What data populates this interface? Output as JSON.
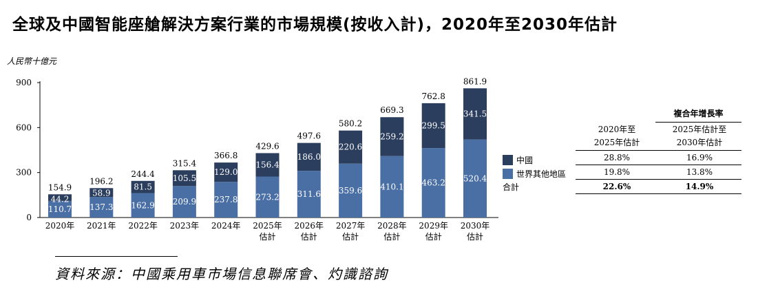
{
  "title": "全球及中國智能座艙解決方案行業的市場規模(按收入計)，2020年至2030年估計",
  "unit_label": "人民幣十億元",
  "source": "資料來源：中國乘用車市場信息聯席會、灼識諮詢",
  "legend": {
    "series1": "中國",
    "series2": "世界其他地區",
    "total": "合計"
  },
  "colors": {
    "china": "#2c3e5e",
    "rest_of_world": "#4a6fa5",
    "axis": "#000000"
  },
  "cagr_table": {
    "title": "複合年增長率",
    "col1_header_line1": "2020年至",
    "col1_header_line2": "2025年估計",
    "col2_header_line1": "2025年估計至",
    "col2_header_line2": "2030年估計",
    "china": [
      "28.8%",
      "16.9%"
    ],
    "rest_of_world": [
      "19.8%",
      "13.8%"
    ],
    "total": [
      "22.6%",
      "14.9%"
    ]
  },
  "chart_data": {
    "type": "bar",
    "stacked": true,
    "categories": [
      "2020年",
      "2021年",
      "2022年",
      "2023年",
      "2024年",
      "2025年\n估計",
      "2026年\n估計",
      "2027年\n估計",
      "2028年\n估計",
      "2029年\n估計",
      "2030年\n估計"
    ],
    "series": [
      {
        "name": "世界其他地區",
        "values": [
          110.7,
          137.3,
          162.9,
          209.9,
          237.8,
          273.2,
          311.6,
          359.6,
          410.1,
          463.2,
          520.4
        ]
      },
      {
        "name": "中國",
        "values": [
          44.2,
          58.9,
          81.5,
          105.5,
          129.0,
          156.4,
          186.0,
          220.6,
          259.2,
          299.5,
          341.5
        ]
      }
    ],
    "totals": [
      154.9,
      196.2,
      244.4,
      315.4,
      366.8,
      429.6,
      497.6,
      580.2,
      669.3,
      762.8,
      861.9
    ],
    "yticks": [
      0,
      300,
      600,
      900
    ],
    "ylim": [
      0,
      900
    ],
    "ylabel": "人民幣十億元",
    "title": "全球及中國智能座艙解決方案行業的市場規模(按收入計)，2020年至2030年估計"
  }
}
